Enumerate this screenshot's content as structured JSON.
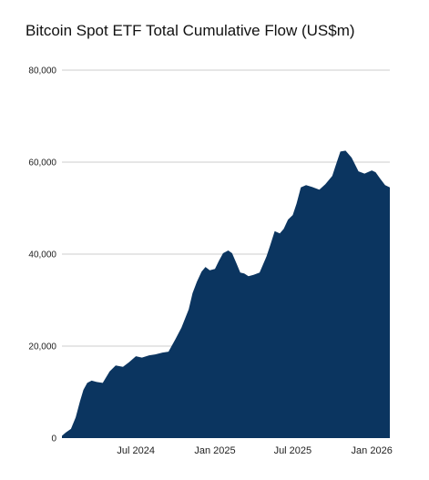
{
  "chart_data": {
    "type": "area",
    "title": "Bitcoin Spot ETF Total Cumulative Flow (US$m)",
    "xlabel": "",
    "ylabel": "",
    "ylim": [
      0,
      80000
    ],
    "y_ticks": [
      0,
      20000,
      40000,
      60000,
      80000
    ],
    "y_tick_labels": [
      "0",
      "20,000",
      "40,000",
      "60,000",
      "80,000"
    ],
    "x_tick_labels": [
      "Jul 2024",
      "Jan 2025",
      "Jul 2025",
      "Jan 2026"
    ],
    "x_tick_dates": [
      "2024-07-01",
      "2025-01-01",
      "2025-07-01",
      "2026-01-01"
    ],
    "xlim": [
      "2024-01-11",
      "2026-02-12"
    ],
    "grid": true,
    "legend": "none",
    "color": "#0b3560",
    "series": [
      {
        "x": [
          "2024-01-11",
          "2024-01-20",
          "2024-02-01",
          "2024-02-12",
          "2024-02-22",
          "2024-03-01",
          "2024-03-10",
          "2024-03-20",
          "2024-04-01",
          "2024-04-15",
          "2024-05-01",
          "2024-05-15",
          "2024-06-01",
          "2024-06-15",
          "2024-07-01",
          "2024-07-15",
          "2024-08-01",
          "2024-08-15",
          "2024-09-01",
          "2024-09-15",
          "2024-10-01",
          "2024-10-15",
          "2024-11-01",
          "2024-11-10",
          "2024-11-20",
          "2024-12-01",
          "2024-12-10",
          "2024-12-20",
          "2025-01-01",
          "2025-01-10",
          "2025-01-20",
          "2025-02-01",
          "2025-02-10",
          "2025-02-20",
          "2025-03-01",
          "2025-03-10",
          "2025-03-20",
          "2025-04-01",
          "2025-04-15",
          "2025-05-01",
          "2025-05-10",
          "2025-05-20",
          "2025-06-01",
          "2025-06-10",
          "2025-06-20",
          "2025-07-01",
          "2025-07-10",
          "2025-07-20",
          "2025-08-01",
          "2025-08-15",
          "2025-09-01",
          "2025-09-15",
          "2025-10-01",
          "2025-10-08",
          "2025-10-20",
          "2025-11-01",
          "2025-11-15",
          "2025-12-01",
          "2025-12-15",
          "2026-01-01",
          "2026-01-10",
          "2026-01-20",
          "2026-02-01",
          "2026-02-12"
        ],
        "values": [
          500,
          1200,
          2000,
          4500,
          8000,
          10500,
          12000,
          12500,
          12200,
          12000,
          14500,
          15800,
          15500,
          16500,
          17800,
          17500,
          18000,
          18200,
          18600,
          18800,
          21500,
          24000,
          28000,
          31500,
          34000,
          36200,
          37200,
          36500,
          36800,
          38500,
          40200,
          40800,
          40200,
          38000,
          36000,
          35800,
          35200,
          35500,
          36000,
          39500,
          42000,
          45000,
          44500,
          45500,
          47500,
          48500,
          51000,
          54500,
          55000,
          54600,
          54000,
          55200,
          57000,
          59000,
          62300,
          62500,
          61000,
          58000,
          57500,
          58200,
          57800,
          56500,
          55000,
          54500
        ]
      }
    ]
  }
}
